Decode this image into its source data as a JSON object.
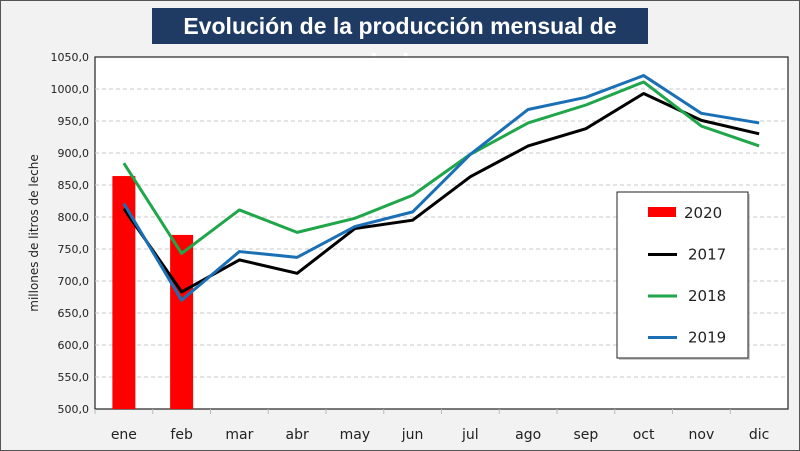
{
  "chart_data": {
    "type": "line",
    "title": "Evolución de la producción mensual de leche",
    "ylabel": "millones de litros de leche",
    "xlabel": "",
    "categories": [
      "ene",
      "feb",
      "mar",
      "abr",
      "may",
      "jun",
      "jul",
      "ago",
      "sep",
      "oct",
      "nov",
      "dic"
    ],
    "ylim": [
      500,
      1050
    ],
    "yticks": [
      "500,0",
      "550,0",
      "600,0",
      "650,0",
      "700,0",
      "750,0",
      "800,0",
      "850,0",
      "900,0",
      "950,0",
      "1000,0",
      "1050,0"
    ],
    "grid": "horizontal dashed",
    "legend_position": "right",
    "bars": {
      "name": "2020",
      "color": "#ff0000",
      "values": [
        864,
        772
      ]
    },
    "series": [
      {
        "name": "2017",
        "color": "#000000",
        "values": [
          813,
          683,
          733,
          712,
          782,
          795,
          863,
          911,
          938,
          993,
          951,
          930
        ]
      },
      {
        "name": "2018",
        "color": "#1fa64a",
        "values": [
          884,
          743,
          811,
          776,
          798,
          834,
          898,
          947,
          975,
          1011,
          942,
          911
        ]
      },
      {
        "name": "2019",
        "color": "#1a6fb5",
        "values": [
          821,
          670,
          746,
          737,
          785,
          808,
          898,
          968,
          987,
          1021,
          962,
          947
        ]
      }
    ]
  }
}
